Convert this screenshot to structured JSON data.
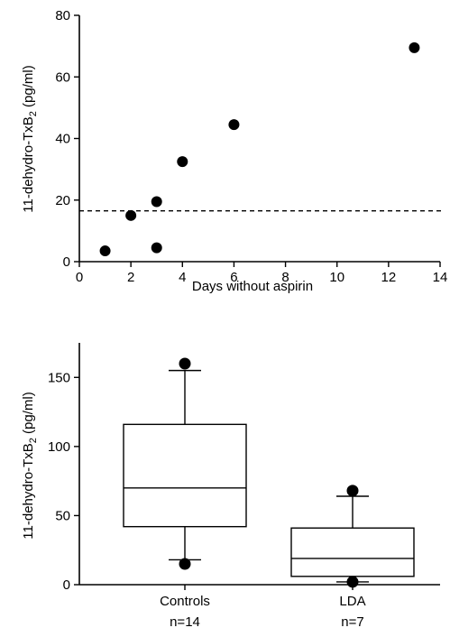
{
  "chart_data": [
    {
      "type": "scatter",
      "title": "",
      "xlabel": "Days without aspirin",
      "ylabel": "11-dehydro-TxB",
      "ylabel_subscript": "2",
      "ylabel_unit": " (pg/ml)",
      "xlim": [
        0,
        14
      ],
      "ylim": [
        0,
        80
      ],
      "xticks": [
        0,
        2,
        4,
        6,
        8,
        10,
        12,
        14
      ],
      "yticks": [
        0,
        20,
        40,
        60,
        80
      ],
      "reference_line_y": 16.5,
      "points": [
        {
          "x": 1,
          "y": 3.5
        },
        {
          "x": 2,
          "y": 15
        },
        {
          "x": 3,
          "y": 19.5
        },
        {
          "x": 3,
          "y": 4.5
        },
        {
          "x": 4,
          "y": 32.5
        },
        {
          "x": 6,
          "y": 44.5
        },
        {
          "x": 13,
          "y": 69.5
        }
      ],
      "grid": false
    },
    {
      "type": "box",
      "title": "",
      "ylabel": "11-dehydro-TxB",
      "ylabel_subscript": "2",
      "ylabel_unit": " (pg/ml)",
      "ylim": [
        0,
        175
      ],
      "yticks": [
        0,
        50,
        100,
        150
      ],
      "categories": [
        {
          "label": "Controls",
          "n": "n=14",
          "q1": 42,
          "median": 70,
          "q3": 116,
          "whisker_low": 18,
          "whisker_high": 155,
          "outliers": [
            160,
            15
          ]
        },
        {
          "label": "LDA",
          "n": "n=7",
          "q1": 6,
          "median": 19,
          "q3": 41,
          "whisker_low": 2,
          "whisker_high": 64,
          "outliers": [
            68,
            2
          ]
        }
      ],
      "grid": false
    }
  ]
}
